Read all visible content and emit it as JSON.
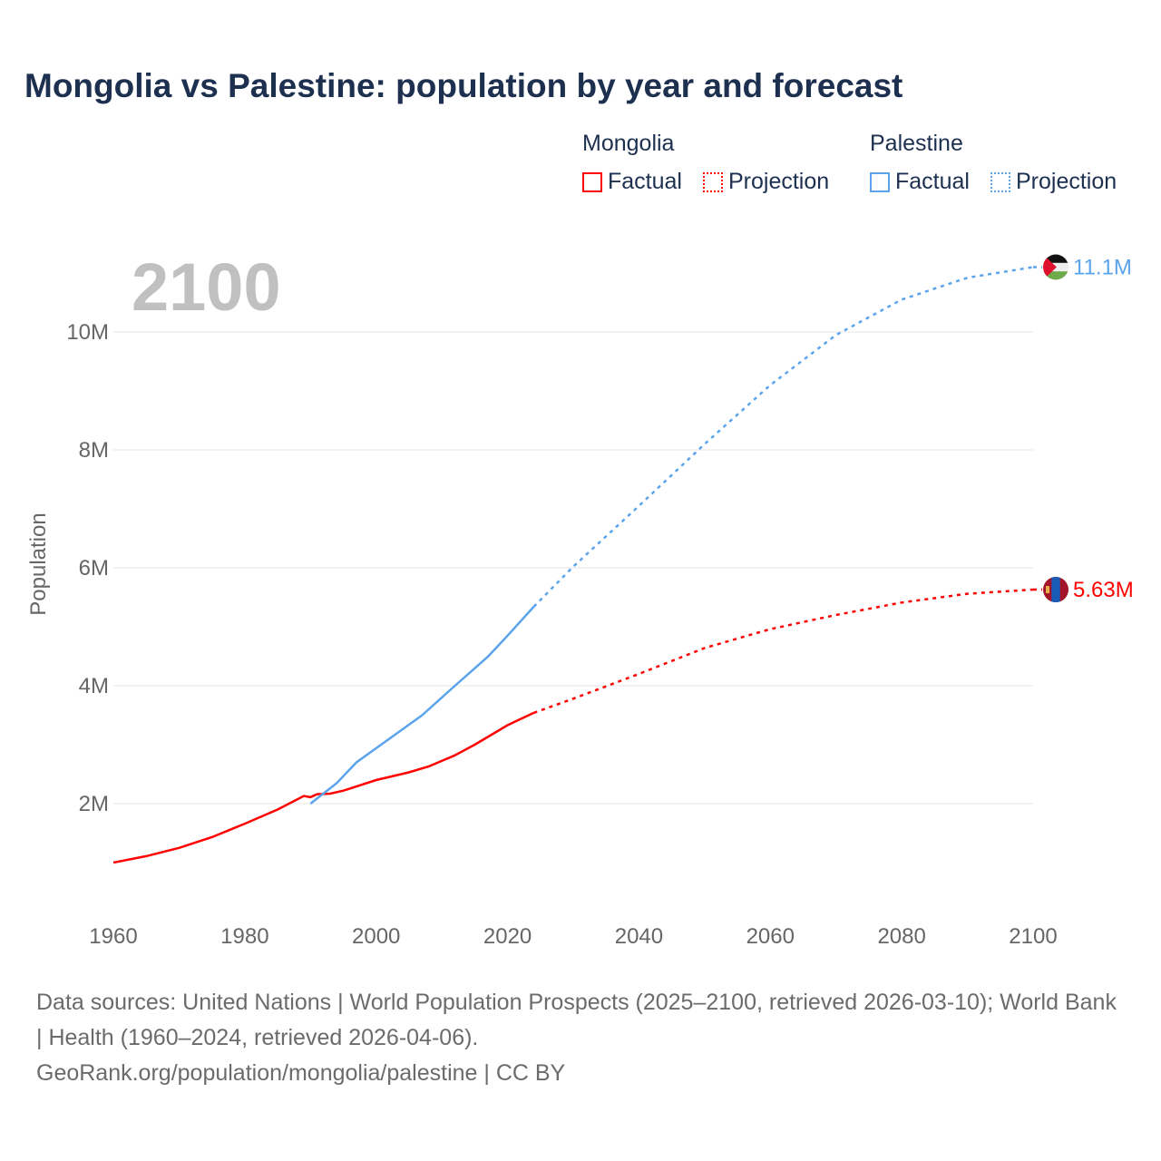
{
  "title": "Mongolia vs Palestine: population by year and forecast",
  "legend": {
    "groups": [
      {
        "name": "Mongolia",
        "factual": "Factual",
        "projection": "Projection",
        "color": "#ff0000"
      },
      {
        "name": "Palestine",
        "factual": "Factual",
        "projection": "Projection",
        "color": "#5ba4ec"
      }
    ]
  },
  "year_overlay": "2100",
  "footer": {
    "sources": "Data sources: United Nations | World Population Prospects (2025–2100, retrieved 2026-03-10); World Bank | Health (1960–2024, retrieved 2026-04-06).",
    "link": "GeoRank.org/population/mongolia/palestine | CC BY"
  },
  "chart_data": {
    "type": "line",
    "title": "Mongolia vs Palestine: population by year and forecast",
    "xlabel": "",
    "ylabel": "Population",
    "xlim": [
      1960,
      2100
    ],
    "ylim": [
      0,
      11.5
    ],
    "y_unit": "millions",
    "x_ticks": [
      "1960",
      "1980",
      "2000",
      "2020",
      "2040",
      "2060",
      "2080",
      "2100"
    ],
    "y_ticks": [
      {
        "v": 2,
        "label": "2M"
      },
      {
        "v": 4,
        "label": "4M"
      },
      {
        "v": 6,
        "label": "6M"
      },
      {
        "v": 8,
        "label": "8M"
      },
      {
        "v": 10,
        "label": "10M"
      }
    ],
    "grid": true,
    "series": [
      {
        "name": "Mongolia",
        "color": "#ff0000",
        "end_label": "5.63M",
        "factual": [
          [
            1960,
            1.0
          ],
          [
            1965,
            1.11
          ],
          [
            1970,
            1.25
          ],
          [
            1975,
            1.43
          ],
          [
            1980,
            1.66
          ],
          [
            1985,
            1.9
          ],
          [
            1989,
            2.13
          ],
          [
            1990,
            2.11
          ],
          [
            1991,
            2.16
          ],
          [
            1993,
            2.17
          ],
          [
            1995,
            2.22
          ],
          [
            2000,
            2.4
          ],
          [
            2005,
            2.53
          ],
          [
            2008,
            2.63
          ],
          [
            2012,
            2.82
          ],
          [
            2015,
            3.0
          ],
          [
            2020,
            3.33
          ],
          [
            2024,
            3.54
          ]
        ],
        "projection": [
          [
            2024,
            3.54
          ],
          [
            2030,
            3.78
          ],
          [
            2040,
            4.2
          ],
          [
            2050,
            4.64
          ],
          [
            2060,
            4.96
          ],
          [
            2070,
            5.2
          ],
          [
            2080,
            5.41
          ],
          [
            2090,
            5.56
          ],
          [
            2100,
            5.63
          ]
        ]
      },
      {
        "name": "Palestine",
        "color": "#5ba4ec",
        "end_label": "11.1M",
        "factual": [
          [
            1990,
            2.0
          ],
          [
            1994,
            2.35
          ],
          [
            1997,
            2.7
          ],
          [
            2002,
            3.1
          ],
          [
            2007,
            3.5
          ],
          [
            2012,
            4.0
          ],
          [
            2017,
            4.49
          ],
          [
            2020,
            4.85
          ],
          [
            2024,
            5.34
          ]
        ],
        "projection": [
          [
            2024,
            5.34
          ],
          [
            2030,
            6.02
          ],
          [
            2040,
            7.05
          ],
          [
            2050,
            8.1
          ],
          [
            2060,
            9.1
          ],
          [
            2070,
            9.95
          ],
          [
            2080,
            10.55
          ],
          [
            2090,
            10.92
          ],
          [
            2100,
            11.1
          ]
        ]
      }
    ]
  }
}
